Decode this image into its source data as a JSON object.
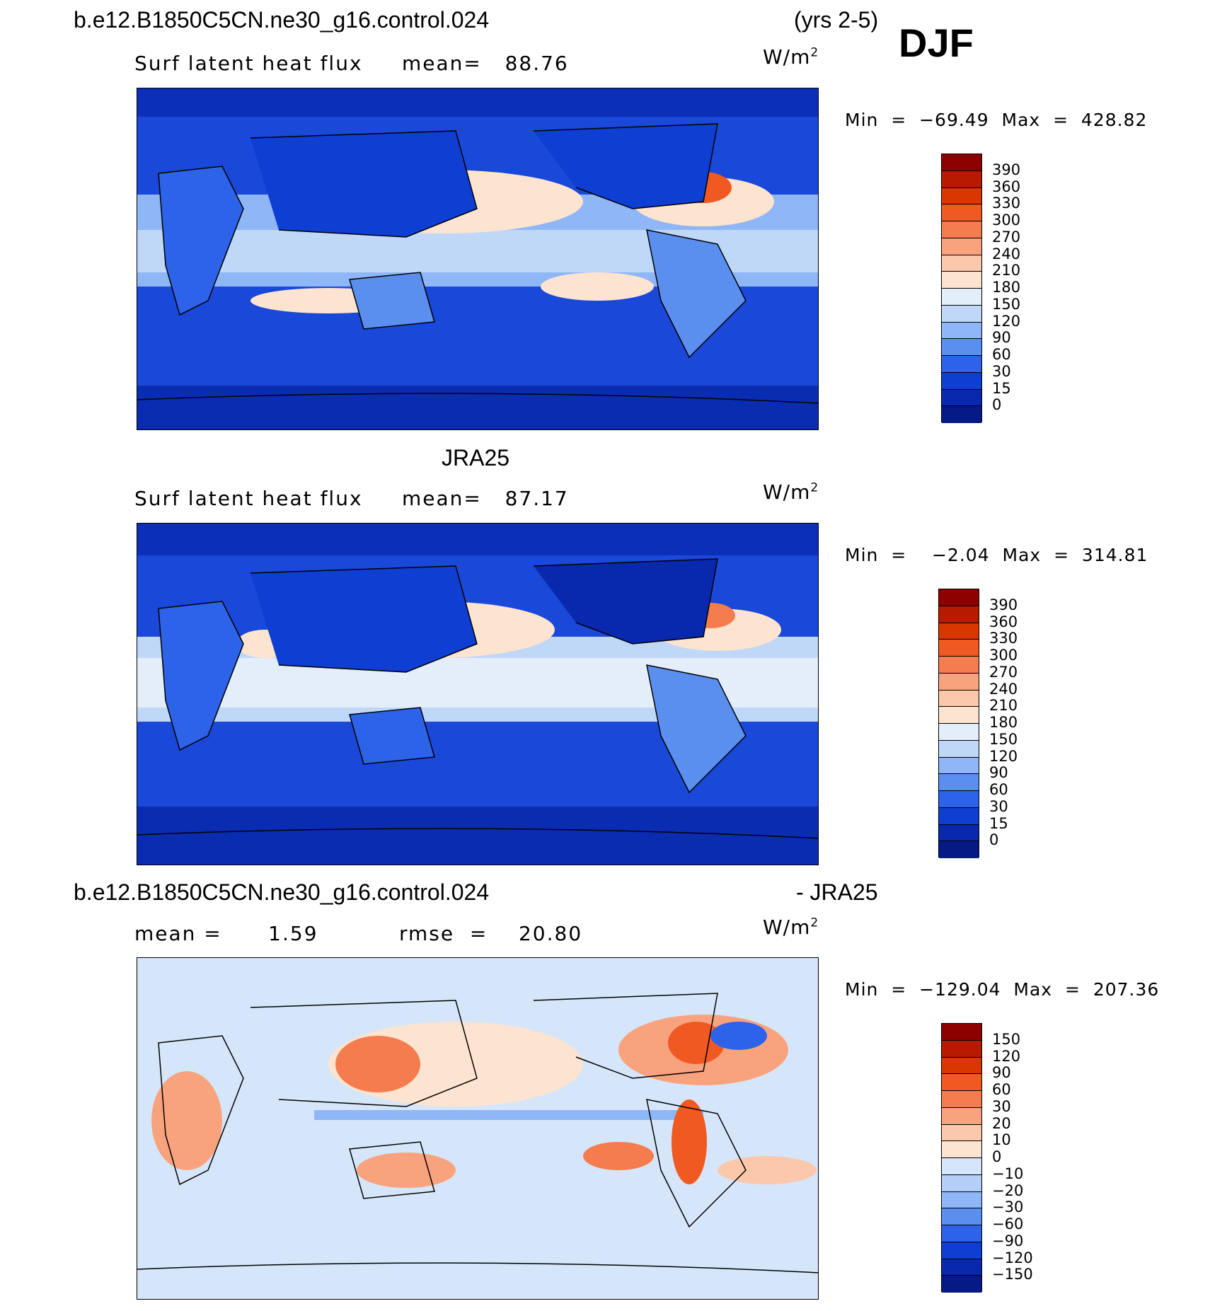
{
  "header": {
    "case_name": "b.e12.B1850C5CN.ne30_g16.control.024",
    "years": "(yrs 2-5)",
    "season": "DJF"
  },
  "panels": [
    {
      "id": "model",
      "title": "",
      "variable": "Surf latent heat flux",
      "stat1": "mean=   88.76",
      "stat2": "",
      "units_base": "W/m",
      "units_exp": "2",
      "minmax": "Min  =  −69.49  Max  =  428.82"
    },
    {
      "id": "obs",
      "title": "JRA25",
      "variable": "Surf latent heat flux",
      "stat1": "mean=   87.17",
      "stat2": "",
      "units_base": "W/m",
      "units_exp": "2",
      "minmax": "Min  =    −2.04  Max  =  314.81"
    },
    {
      "id": "diff",
      "title": "b.e12.B1850C5CN.ne30_g16.control.024",
      "title_right": "- JRA25",
      "variable": "",
      "stat1": "mean =      1.59",
      "stat2": "rmse  =    20.80",
      "units_base": "W/m",
      "units_exp": "2",
      "minmax": "Min  =  −129.04  Max  =  207.36"
    }
  ],
  "colorbars": {
    "absolute": {
      "labels": [
        "390",
        "360",
        "330",
        "300",
        "270",
        "240",
        "210",
        "180",
        "150",
        "120",
        "90",
        "60",
        "30",
        "15",
        "0"
      ],
      "colors": [
        "#8e0000",
        "#b81a00",
        "#d93600",
        "#f05a22",
        "#f47c4f",
        "#f9a37e",
        "#fcc8ab",
        "#fde4d0",
        "#e4eefa",
        "#c0d8f8",
        "#8fb6f6",
        "#5a8ff0",
        "#2d63e8",
        "#0e3ed2",
        "#0828ad",
        "#061a85"
      ]
    },
    "difference": {
      "labels": [
        "150",
        "120",
        "90",
        "60",
        "30",
        "20",
        "10",
        "0",
        "−10",
        "−20",
        "−30",
        "−60",
        "−90",
        "−120",
        "−150"
      ],
      "colors": [
        "#8e0000",
        "#b81a00",
        "#d93600",
        "#f05a22",
        "#f47c4f",
        "#f9a37e",
        "#fcc8ab",
        "#fde4d0",
        "#d6e6fa",
        "#b4cff7",
        "#8fb6f6",
        "#5a8ff0",
        "#2d63e8",
        "#0e3ed2",
        "#0828ad",
        "#061a85"
      ]
    }
  }
}
